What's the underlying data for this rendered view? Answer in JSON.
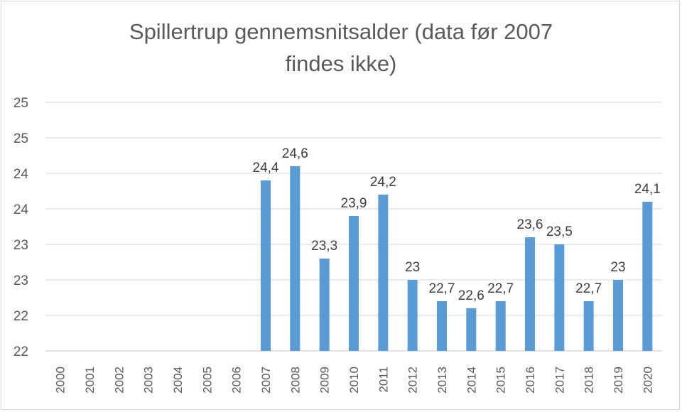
{
  "chart_data": {
    "type": "bar",
    "title_line1": "Spillertrup gennemsnitsalder (data før 2007",
    "title_line2": "findes ikke)",
    "categories": [
      "2000",
      "2001",
      "2002",
      "2003",
      "2004",
      "2005",
      "2006",
      "2007",
      "2008",
      "2009",
      "2010",
      "2011",
      "2012",
      "2013",
      "2014",
      "2015",
      "2016",
      "2017",
      "2018",
      "2019",
      "2020"
    ],
    "values": [
      null,
      null,
      null,
      null,
      null,
      null,
      null,
      24.4,
      24.6,
      23.3,
      23.9,
      24.2,
      23,
      22.7,
      22.6,
      22.7,
      23.6,
      23.5,
      22.7,
      23,
      24.1
    ],
    "value_labels": [
      "",
      "",
      "",
      "",
      "",
      "",
      "",
      "24,4",
      "24,6",
      "23,3",
      "23,9",
      "24,2",
      "23",
      "22,7",
      "22,6",
      "22,7",
      "23,6",
      "23,5",
      "22,7",
      "23",
      "24,1"
    ],
    "ylim": [
      22,
      25.5
    ],
    "ytick_values": [
      22,
      22.5,
      23,
      23.5,
      24,
      24.5,
      25,
      25.5
    ],
    "ytick_labels": [
      "22",
      "22",
      "23",
      "23",
      "24",
      "24",
      "25",
      "25"
    ],
    "grid": true,
    "xlabel": "",
    "ylabel": "",
    "bar_color": "#5b9bd5"
  }
}
